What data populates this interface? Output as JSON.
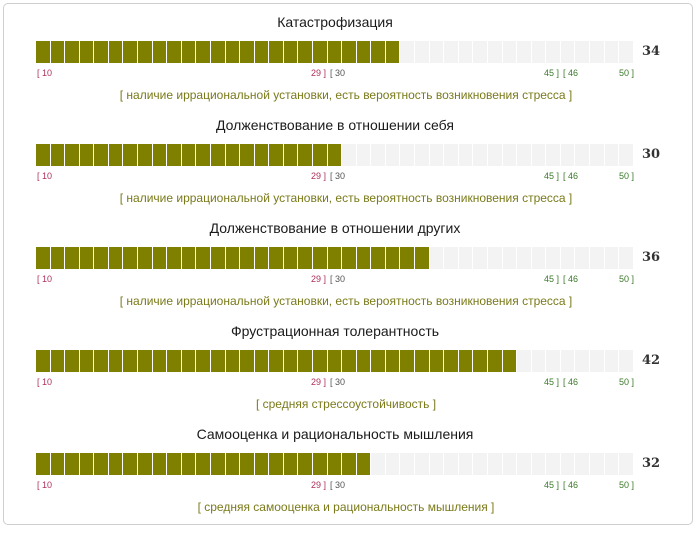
{
  "scales": [
    {
      "title": "Катастрофизация",
      "score": 34,
      "score_label": "34",
      "verdict": "[ наличие иррациональной установки, есть вероятность возникновения стресса ]"
    },
    {
      "title": "Долженствование в отношении себя",
      "score": 30,
      "score_label": "30",
      "verdict": "[ наличие иррациональной установки, есть вероятность возникновения стресса ]"
    },
    {
      "title": "Долженствование в отношении других",
      "score": 36,
      "score_label": "36",
      "verdict": "[ наличие иррациональной установки, есть вероятность возникновения стресса ]"
    },
    {
      "title": "Фрустрационная толерантность",
      "score": 42,
      "score_label": "42",
      "verdict": "[ средняя стрессоустойчивость ]"
    },
    {
      "title": "Самооценка и рациональность мышления",
      "score": 32,
      "score_label": "32",
      "verdict": "[ средняя самооценка и рациональность мышления ]"
    }
  ],
  "scale_range": {
    "min": 10,
    "max": 50
  },
  "ticks": {
    "low_start": "[ 10",
    "low_end": "29 ]",
    "mid_start": "[ 30",
    "mid_end": "45 ]",
    "high_start": "[ 46",
    "high_end": "50 ]"
  },
  "colors": {
    "filled_segment": "#808000",
    "empty_segment": "#f3f3f3",
    "low_tick": "#b0305a",
    "high_tick": "#3b7a2a",
    "verdict_text": "#7a7a1a"
  }
}
